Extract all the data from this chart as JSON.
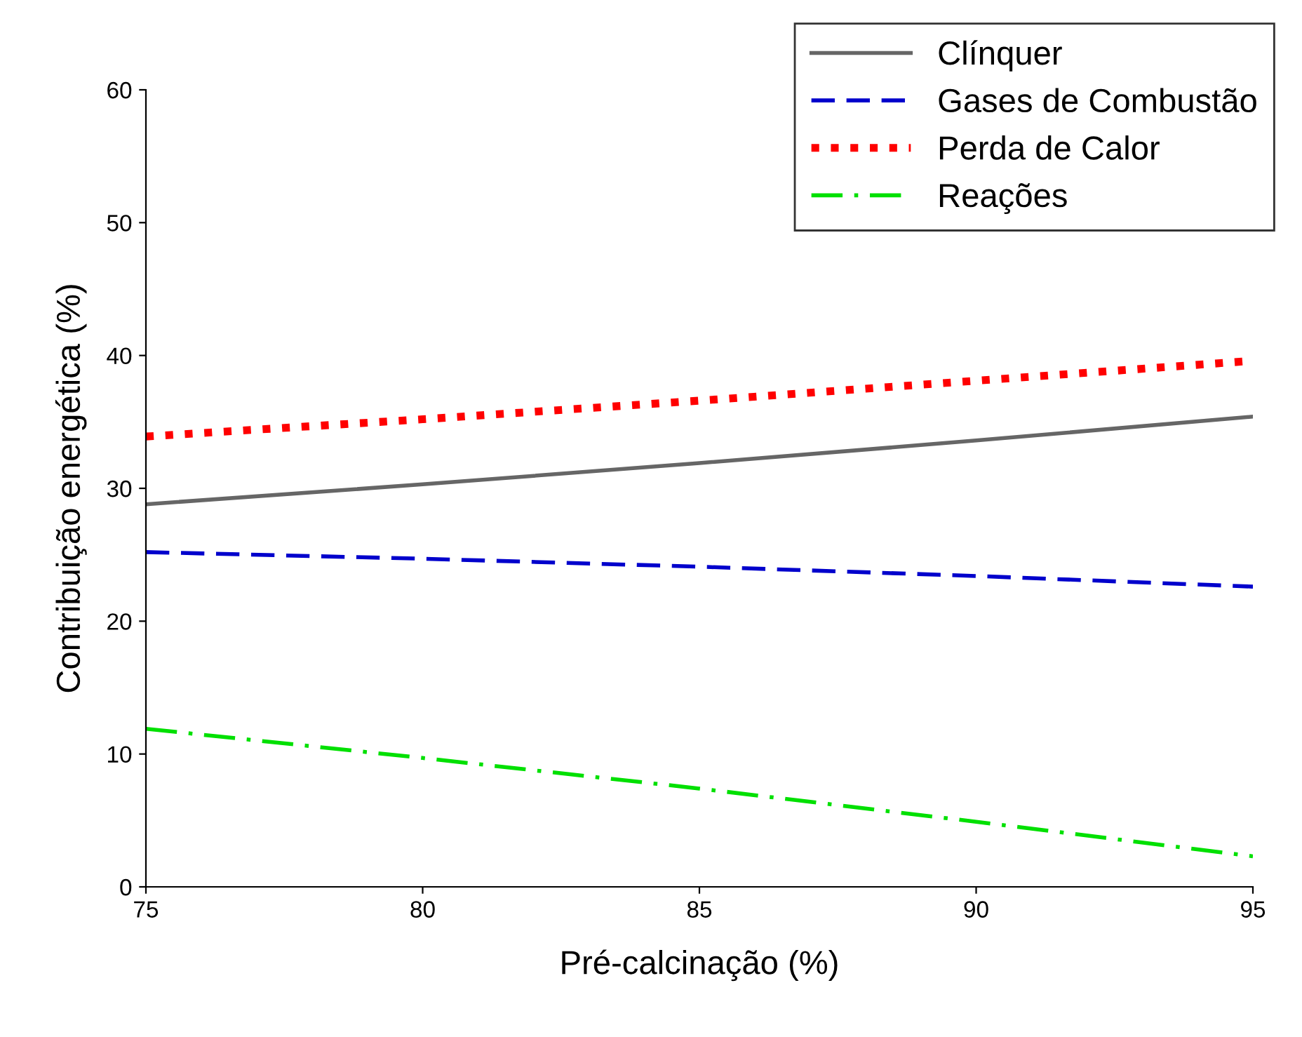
{
  "chart_data": {
    "type": "line",
    "xlabel": "Pré-calcinação (%)",
    "ylabel": "Contribuição energética (%)",
    "x": [
      75,
      80,
      85,
      90,
      95
    ],
    "series": [
      {
        "name": "Clínquer",
        "color": "#666666",
        "line_style": "solid",
        "values": [
          28.8,
          30.3,
          31.9,
          33.6,
          35.4
        ]
      },
      {
        "name": "Gases de Combustão",
        "color": "#0000cc",
        "line_style": "dashed",
        "values": [
          25.2,
          24.7,
          24.1,
          23.4,
          22.6
        ]
      },
      {
        "name": "Perda de Calor",
        "color": "#ff0000",
        "line_style": "dotted",
        "values": [
          33.9,
          35.2,
          36.6,
          38.1,
          39.6
        ]
      },
      {
        "name": "Reações",
        "color": "#00e000",
        "line_style": "dashdot",
        "values": [
          11.9,
          9.7,
          7.4,
          4.9,
          2.3
        ]
      }
    ],
    "xlim": [
      75,
      95
    ],
    "xticks": [
      75,
      80,
      85,
      90,
      95
    ],
    "ylim": [
      0,
      60
    ],
    "yticks": [
      0,
      10,
      20,
      30,
      40,
      50,
      60
    ],
    "grid": false,
    "legend": "top right",
    "marker": "none"
  }
}
